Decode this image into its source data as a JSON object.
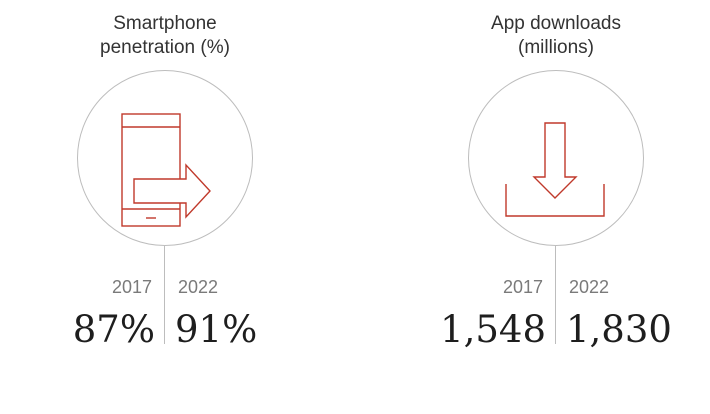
{
  "colors": {
    "accent": "#c0392b",
    "circle": "#bdbdbd",
    "text": "#333333",
    "year": "#7a7a7a"
  },
  "stats": [
    {
      "title_lines": [
        "Smartphone",
        "penetration (%)"
      ],
      "icon": "smartphone-arrow-icon",
      "years": [
        "2017",
        "2022"
      ],
      "values": [
        "87%",
        "91%"
      ]
    },
    {
      "title_lines": [
        "App downloads",
        "(millions)"
      ],
      "icon": "download-icon",
      "years": [
        "2017",
        "2022"
      ],
      "values": [
        "1,548",
        "1,830"
      ]
    }
  ]
}
